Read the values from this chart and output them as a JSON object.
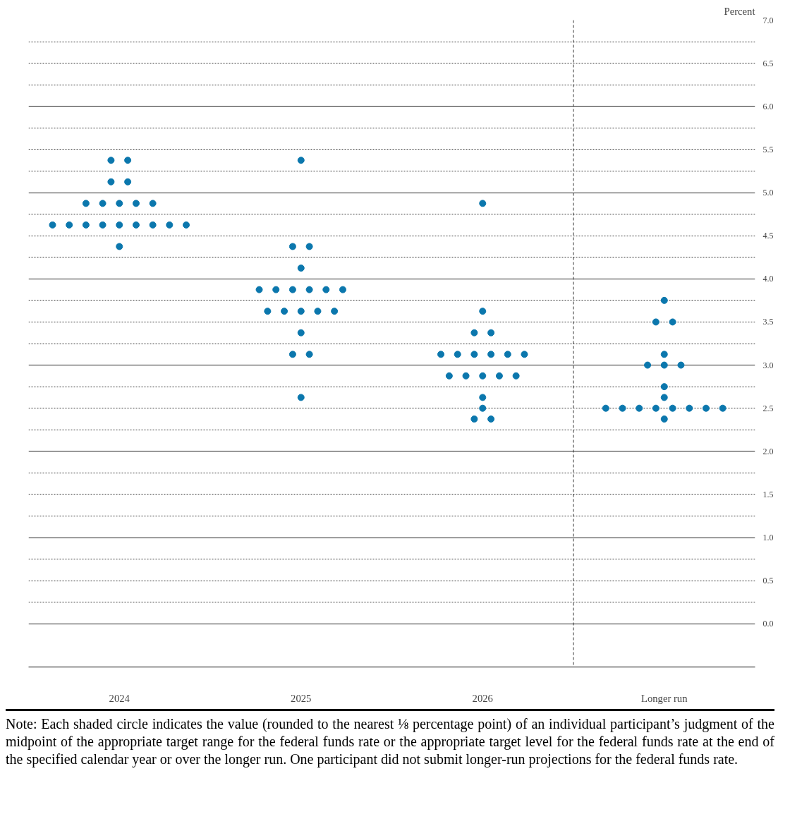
{
  "chart_data": {
    "type": "scatter",
    "categories": [
      "2024",
      "2025",
      "2026",
      "Longer run"
    ],
    "ylabel": "Percent",
    "ylim": [
      -0.5,
      7.0
    ],
    "yticks": [
      {
        "value": 0,
        "label": "0.0"
      },
      {
        "value": 0.25,
        "label": null
      },
      0.5,
      {
        "value": 0.75,
        "label": null
      },
      {
        "value": 1,
        "label": "1.0"
      },
      {
        "value": 1.25,
        "label": null
      },
      1.5,
      {
        "value": 1.75,
        "label": null
      },
      {
        "value": 2,
        "label": "2.0"
      },
      {
        "value": 2.25,
        "label": null
      },
      2.5,
      {
        "value": 2.75,
        "label": null
      },
      {
        "value": 3,
        "label": "3.0"
      },
      {
        "value": 3.25,
        "label": null
      },
      3.5,
      {
        "value": 3.75,
        "label": null
      },
      {
        "value": 4,
        "label": "4.0"
      },
      {
        "value": 4.25,
        "label": null
      },
      4.5,
      {
        "value": 4.75,
        "label": null
      },
      {
        "value": 5,
        "label": "5.0"
      },
      {
        "value": 5.25,
        "label": null
      },
      5.5,
      {
        "value": 5.75,
        "label": null
      },
      {
        "value": 6,
        "label": "6.0"
      },
      {
        "value": 6.25,
        "label": null
      },
      6.5,
      {
        "value": 6.75,
        "label": null
      },
      {
        "value": 7,
        "label": "7.0"
      }
    ],
    "grid": "y",
    "marker": "circle",
    "series": [
      {
        "color": "#0b77ad",
        "values": [
          5.375,
          5.375,
          4.875,
          3.75
        ]
      },
      {
        "color": "#0b77ad",
        "values": [
          5.375,
          4.375,
          3.625,
          3.5
        ]
      },
      {
        "color": "#0b77ad",
        "values": [
          5.125,
          4.375,
          3.375,
          3.5
        ]
      },
      {
        "color": "#0b77ad",
        "values": [
          5.125,
          4.125,
          3.375,
          3.125
        ]
      },
      {
        "color": "#0b77ad",
        "values": [
          4.875,
          3.875,
          3.125,
          3.0
        ]
      },
      {
        "color": "#0b77ad",
        "values": [
          4.875,
          3.875,
          3.125,
          3.0
        ]
      },
      {
        "color": "#0b77ad",
        "values": [
          4.875,
          3.875,
          3.125,
          3.0
        ]
      },
      {
        "color": "#0b77ad",
        "values": [
          4.875,
          3.875,
          3.125,
          2.75
        ]
      },
      {
        "color": "#0b77ad",
        "values": [
          4.875,
          3.875,
          3.125,
          2.625
        ]
      },
      {
        "color": "#0b77ad",
        "values": [
          4.625,
          3.875,
          3.125,
          2.5
        ]
      },
      {
        "color": "#0b77ad",
        "values": [
          4.625,
          3.625,
          2.875,
          2.5
        ]
      },
      {
        "color": "#0b77ad",
        "values": [
          4.625,
          3.625,
          2.875,
          2.5
        ]
      },
      {
        "color": "#0b77ad",
        "values": [
          4.625,
          3.625,
          2.875,
          2.5
        ]
      },
      {
        "color": "#0b77ad",
        "values": [
          4.625,
          3.625,
          2.875,
          2.5
        ]
      },
      {
        "color": "#0b77ad",
        "values": [
          4.625,
          3.625,
          2.875,
          2.5
        ]
      },
      {
        "color": "#0b77ad",
        "values": [
          4.625,
          3.375,
          2.625,
          2.5
        ]
      },
      {
        "color": "#0b77ad",
        "values": [
          4.625,
          3.125,
          2.5,
          2.5
        ]
      },
      {
        "color": "#0b77ad",
        "values": [
          4.625,
          3.125,
          2.375,
          2.375
        ]
      },
      {
        "color": "#0b77ad",
        "values": [
          4.375,
          2.625,
          2.375,
          null
        ]
      }
    ],
    "annotations": [
      "Note: Each shaded circle indicates the value (rounded to the nearest ⅛ percentage point) of an individual participant’s judgment of the midpoint of the appropriate target range for the federal funds rate or the appropriate target level for the federal funds rate at the end of the specified calendar year or over the longer run. One participant did not submit longer-run projections for the federal funds rate."
    ]
  }
}
